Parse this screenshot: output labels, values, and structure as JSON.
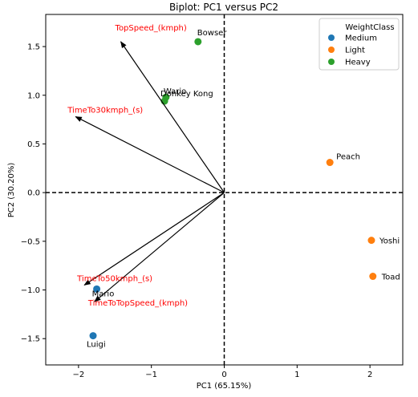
{
  "chart_data": {
    "type": "scatter",
    "title": "Biplot: PC1 versus PC2",
    "xlabel": "PC1 (65.15%)",
    "ylabel": "PC2 (30.20%)",
    "xlim": [
      -2.45,
      2.45
    ],
    "ylim": [
      -1.77,
      1.83
    ],
    "xticks": [
      -2,
      -1,
      0,
      1,
      2
    ],
    "yticks": [
      -1.5,
      -1.0,
      -0.5,
      0.0,
      0.5,
      1.0,
      1.5
    ],
    "xtick_labels": [
      "−2",
      "−1",
      "0",
      "1",
      "2"
    ],
    "ytick_labels": [
      "−1.5",
      "−1.0",
      "−0.5",
      "0.0",
      "0.5",
      "1.0",
      "1.5"
    ],
    "grid": false,
    "reference_lines": {
      "x": 0,
      "y": 0,
      "style": "dashed"
    },
    "legend": {
      "title": "WeightClass",
      "placement": "top-right",
      "entries": [
        {
          "name": "Medium",
          "color": "#1f77b4"
        },
        {
          "name": "Light",
          "color": "#ff7f0e"
        },
        {
          "name": "Heavy",
          "color": "#2ca02c"
        }
      ]
    },
    "points": [
      {
        "label": "Mario",
        "class": "Medium",
        "x": -1.75,
        "y": -0.99
      },
      {
        "label": "Luigi",
        "class": "Medium",
        "x": -1.8,
        "y": -1.47
      },
      {
        "label": "Peach",
        "class": "Light",
        "x": 1.45,
        "y": 0.31
      },
      {
        "label": "Yoshi",
        "class": "Light",
        "x": 2.02,
        "y": -0.49
      },
      {
        "label": "Toad",
        "class": "Light",
        "x": 2.04,
        "y": -0.86
      },
      {
        "label": "Bowser",
        "class": "Heavy",
        "x": -0.36,
        "y": 1.55
      },
      {
        "label": "Wario",
        "class": "Heavy",
        "x": -0.8,
        "y": 0.98
      },
      {
        "label": "Donkey Kong",
        "class": "Heavy",
        "x": -0.82,
        "y": 0.94
      }
    ],
    "loadings": [
      {
        "name": "TopSpeed_(kmph)",
        "x": -1.42,
        "y": 1.55,
        "color": "#ff0000"
      },
      {
        "name": "TimeTo30kmph_(s)",
        "x": -2.04,
        "y": 0.78,
        "color": "#ff0000"
      },
      {
        "name": "TimeTo50kmph_(s)",
        "x": -1.92,
        "y": -0.95,
        "color": "#ff0000"
      },
      {
        "name": "TimeToTopSpeed_(kmph)",
        "x": -1.78,
        "y": -1.12,
        "color": "#ff0000"
      }
    ]
  }
}
